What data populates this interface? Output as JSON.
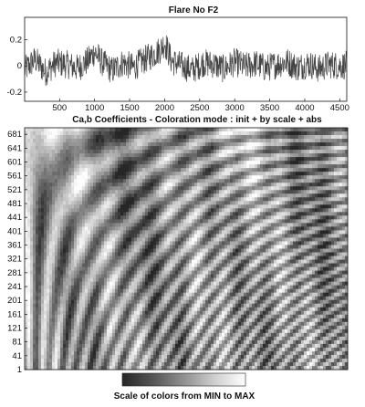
{
  "chart_data": [
    {
      "type": "line",
      "title": "Flare No F2",
      "xlim": [
        1,
        4600
      ],
      "ylim": [
        -0.27,
        0.37
      ],
      "xticks": [
        500,
        1000,
        1500,
        2000,
        2500,
        3000,
        3500,
        4000,
        4500
      ],
      "yticks": [
        0.2,
        0,
        -0.2
      ],
      "ytick_labels": [
        "0.2",
        "0",
        "-0.2"
      ],
      "grid": false,
      "series": [
        {
          "x": [
            1,
            150,
            300,
            450,
            600,
            750,
            900,
            1000,
            1100,
            1250,
            1400,
            1550,
            1700,
            1850,
            1950,
            2000,
            2100,
            2250,
            2400,
            2550,
            2700,
            2850,
            3000,
            3150,
            3300,
            3450,
            3600,
            3750,
            3900,
            4050,
            4200,
            4350,
            4500,
            4600
          ],
          "y": [
            -0.05,
            0.08,
            -0.08,
            0.04,
            0.02,
            -0.03,
            0.06,
            0.18,
            0.05,
            -0.06,
            0.04,
            -0.02,
            0.07,
            0.15,
            0.22,
            0.3,
            0.06,
            0.0,
            -0.05,
            0.04,
            0.02,
            -0.04,
            0.05,
            -0.01,
            0.03,
            -0.03,
            0.02,
            0.05,
            -0.02,
            0.03,
            -0.04,
            0.02,
            0.0,
            0.01
          ]
        }
      ]
    },
    {
      "type": "heatmap",
      "title": "Ca,b Coefficients  - Coloration mode : init + by scale + abs",
      "ylim": [
        1,
        700
      ],
      "yticks": [
        1,
        41,
        81,
        121,
        161,
        201,
        241,
        281,
        321,
        361,
        401,
        441,
        481,
        521,
        561,
        601,
        641,
        681
      ],
      "colorbar_label": "Scale of colors from MIN to MAX",
      "colormap": [
        "#262626",
        "#ffffff"
      ]
    }
  ]
}
